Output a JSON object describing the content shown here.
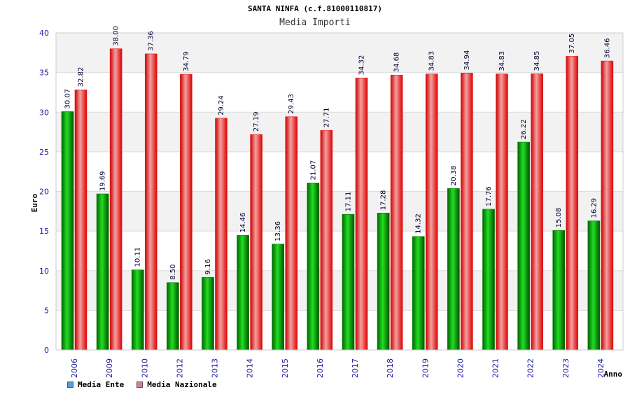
{
  "chart_data": {
    "type": "bar",
    "title": "SANTA NINFA (c.f.81000110817)",
    "subtitle": "Media Importi",
    "xlabel": "Anno",
    "ylabel": "Euro",
    "ylim": [
      0,
      40
    ],
    "yticks": [
      0,
      5,
      10,
      15,
      20,
      25,
      30,
      35,
      40
    ],
    "grid": true,
    "legend_position": "bottom-left",
    "categories": [
      "2006",
      "2009",
      "2010",
      "2012",
      "2013",
      "2014",
      "2015",
      "2016",
      "2017",
      "2018",
      "2019",
      "2020",
      "2021",
      "2022",
      "2023",
      "2024"
    ],
    "series": [
      {
        "name": "Media Ente",
        "color": "#00aa00",
        "legend_color": "#5b9bd5",
        "values": [
          30.07,
          19.69,
          10.11,
          8.5,
          9.16,
          14.46,
          13.36,
          21.07,
          17.11,
          17.28,
          14.32,
          20.38,
          17.76,
          26.22,
          15.08,
          16.29
        ],
        "labels": [
          "30.07",
          "19.69",
          "10.11",
          "8.50",
          "9.16",
          "14.46",
          "13.36",
          "21.07",
          "17.11",
          "17.28",
          "14.32",
          "20.38",
          "17.76",
          "26.22",
          "15.08",
          "16.29"
        ]
      },
      {
        "name": "Media Nazionale",
        "color": "#ee1111",
        "legend_color": "#d978a8",
        "values": [
          32.82,
          38.0,
          37.36,
          34.79,
          29.24,
          27.19,
          29.43,
          27.71,
          34.32,
          34.68,
          34.83,
          34.94,
          34.83,
          34.85,
          37.05,
          36.46
        ],
        "labels": [
          "32.82",
          "38.00",
          "37.36",
          "34.79",
          "29.24",
          "27.19",
          "29.43",
          "27.71",
          "34.32",
          "34.68",
          "34.83",
          "34.94",
          "34.83",
          "34.85",
          "37.05",
          "36.46"
        ]
      }
    ]
  }
}
